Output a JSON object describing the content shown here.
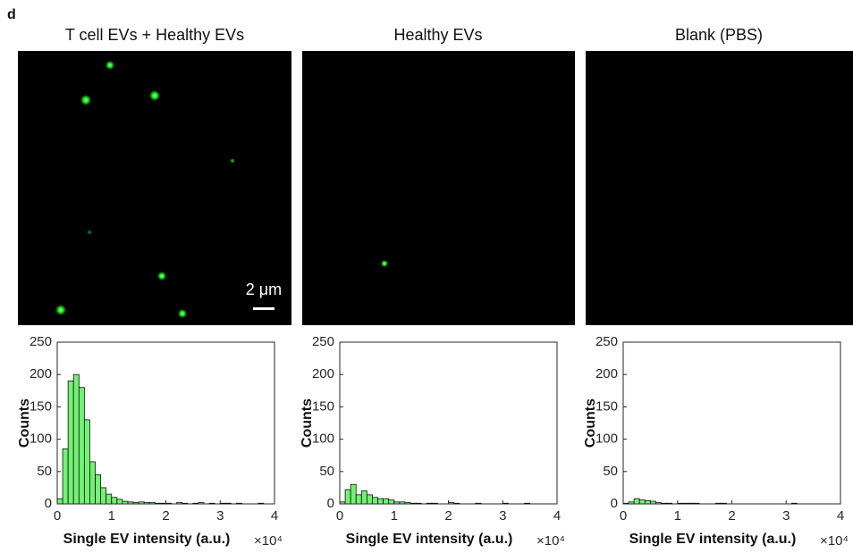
{
  "panel_label": "d",
  "scale_bar": "2 μm",
  "chart_data": [
    {
      "type": "histogram",
      "title": "T cell EVs + Healthy EVs",
      "xlabel": "Single EV intensity (a.u.)",
      "x_multiplier": "×10⁴",
      "ylabel": "Counts",
      "color": "#72f272",
      "bins": [
        0,
        1000,
        2000,
        3000,
        4000,
        5000,
        6000,
        7000,
        8000,
        9000,
        10000,
        11000,
        12000,
        13000,
        14000,
        15000,
        16000,
        17000,
        18000,
        19000,
        20000,
        21000,
        22000,
        23000,
        24000,
        25000,
        26000,
        27000,
        28000,
        29000,
        30000,
        31000,
        32000,
        33000,
        34000,
        35000,
        36000,
        37000,
        38000,
        39000,
        40000
      ],
      "counts": [
        8,
        85,
        190,
        200,
        180,
        130,
        65,
        45,
        25,
        15,
        10,
        7,
        4,
        3,
        2,
        3,
        2,
        2,
        1,
        1,
        1,
        0,
        2,
        1,
        0,
        1,
        2,
        0,
        1,
        0,
        1,
        1,
        0,
        1,
        0,
        0,
        0,
        1,
        0,
        0
      ],
      "xlim": [
        0,
        40000
      ],
      "xticks": [
        {
          "value": 0,
          "label": "0"
        },
        {
          "value": 10000,
          "label": "1"
        },
        {
          "value": 20000,
          "label": "2"
        },
        {
          "value": 30000,
          "label": "3"
        },
        {
          "value": 40000,
          "label": "4"
        }
      ],
      "ylim": [
        0,
        250
      ],
      "yticks": [
        0,
        50,
        100,
        150,
        200,
        250
      ]
    },
    {
      "type": "histogram",
      "title": "Healthy EVs",
      "xlabel": "Single EV intensity (a.u.)",
      "x_multiplier": "×10⁴",
      "ylabel": "Counts",
      "color": "#72f272",
      "bins": [
        0,
        1000,
        2000,
        3000,
        4000,
        5000,
        6000,
        7000,
        8000,
        9000,
        10000,
        11000,
        12000,
        13000,
        14000,
        15000,
        16000,
        17000,
        18000,
        19000,
        20000,
        21000,
        22000,
        23000,
        24000,
        25000,
        26000,
        27000,
        28000,
        29000,
        30000,
        31000,
        32000,
        33000,
        34000,
        35000,
        36000,
        37000,
        38000,
        39000,
        40000
      ],
      "counts": [
        3,
        22,
        30,
        14,
        20,
        14,
        10,
        8,
        8,
        6,
        3,
        3,
        2,
        1,
        1,
        0,
        1,
        1,
        0,
        0,
        2,
        1,
        0,
        0,
        0,
        1,
        0,
        0,
        0,
        0,
        1,
        0,
        0,
        0,
        1,
        0,
        0,
        0,
        0,
        0
      ],
      "xlim": [
        0,
        40000
      ],
      "xticks": [
        {
          "value": 0,
          "label": "0"
        },
        {
          "value": 10000,
          "label": "1"
        },
        {
          "value": 20000,
          "label": "2"
        },
        {
          "value": 30000,
          "label": "3"
        },
        {
          "value": 40000,
          "label": "4"
        }
      ],
      "ylim": [
        0,
        250
      ],
      "yticks": [
        0,
        50,
        100,
        150,
        200,
        250
      ]
    },
    {
      "type": "histogram",
      "title": "Blank (PBS)",
      "xlabel": "Single EV intensity (a.u.)",
      "x_multiplier": "×10⁴",
      "ylabel": "Counts",
      "color": "#72f272",
      "bins": [
        0,
        1000,
        2000,
        3000,
        4000,
        5000,
        6000,
        7000,
        8000,
        9000,
        10000,
        11000,
        12000,
        13000,
        14000,
        15000,
        16000,
        17000,
        18000,
        19000,
        20000,
        21000,
        22000,
        23000,
        24000,
        25000,
        26000,
        27000,
        28000,
        29000,
        30000,
        31000,
        32000,
        33000,
        34000,
        35000,
        36000,
        37000,
        38000,
        39000,
        40000
      ],
      "counts": [
        1,
        3,
        8,
        6,
        5,
        4,
        2,
        1,
        1,
        0,
        1,
        1,
        1,
        1,
        0,
        0,
        0,
        1,
        1,
        0,
        0,
        0,
        0,
        0,
        0,
        0,
        0,
        0,
        0,
        0,
        0,
        1,
        0,
        0,
        0,
        0,
        0,
        0,
        0,
        0
      ],
      "xlim": [
        0,
        40000
      ],
      "xticks": [
        {
          "value": 0,
          "label": "0"
        },
        {
          "value": 10000,
          "label": "1"
        },
        {
          "value": 20000,
          "label": "2"
        },
        {
          "value": 30000,
          "label": "3"
        },
        {
          "value": 40000,
          "label": "4"
        }
      ],
      "ylim": [
        0,
        250
      ],
      "yticks": [
        0,
        50,
        100,
        150,
        200,
        250
      ]
    }
  ]
}
